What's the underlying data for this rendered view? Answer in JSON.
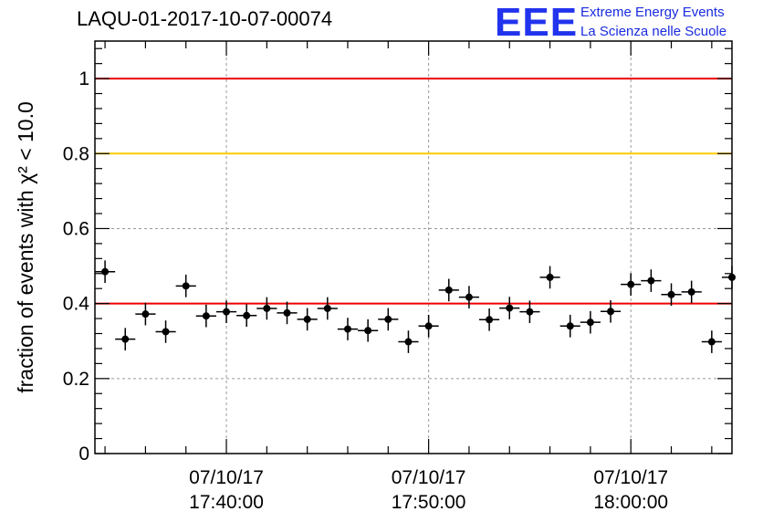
{
  "header": {
    "title": "LAQU-01-2017-10-07-00074"
  },
  "logo": {
    "mark": "EEE",
    "line1": "Extreme Energy Events",
    "line2": "La Scienza nelle Scuole",
    "color": "#2233ee"
  },
  "chart_data": {
    "type": "scatter",
    "ylabel": "fraction of events with χ² < 10.0",
    "ylim": [
      0,
      1.1
    ],
    "yticks": [
      0,
      0.2,
      0.4,
      0.6,
      0.8,
      1
    ],
    "ytick_labels": [
      "0",
      "0.2",
      "0.4",
      "0.6",
      "0.8",
      "1"
    ],
    "xlim": [
      "2017-10-07 17:33:30",
      "2017-10-07 18:05:00"
    ],
    "xticks": [
      "2017-10-07 17:40:00",
      "2017-10-07 17:50:00",
      "2017-10-07 18:00:00"
    ],
    "xtick_labels": [
      [
        "07/10/17",
        "17:40:00"
      ],
      [
        "07/10/17",
        "17:50:00"
      ],
      [
        "07/10/17",
        "18:00:00"
      ]
    ],
    "grid": true,
    "reference_lines": [
      {
        "y": 1.0,
        "color": "#ee0000"
      },
      {
        "y": 0.8,
        "color": "#ffcc00"
      },
      {
        "y": 0.4,
        "color": "#ee0000"
      }
    ],
    "series": [
      {
        "marker_color": "#000000",
        "x": [
          "2017-10-07 17:34:00",
          "2017-10-07 17:35:00",
          "2017-10-07 17:36:00",
          "2017-10-07 17:37:00",
          "2017-10-07 17:38:00",
          "2017-10-07 17:39:00",
          "2017-10-07 17:40:00",
          "2017-10-07 17:41:00",
          "2017-10-07 17:42:00",
          "2017-10-07 17:43:00",
          "2017-10-07 17:44:00",
          "2017-10-07 17:45:00",
          "2017-10-07 17:46:00",
          "2017-10-07 17:47:00",
          "2017-10-07 17:48:00",
          "2017-10-07 17:49:00",
          "2017-10-07 17:50:00",
          "2017-10-07 17:51:00",
          "2017-10-07 17:52:00",
          "2017-10-07 17:53:00",
          "2017-10-07 17:54:00",
          "2017-10-07 17:55:00",
          "2017-10-07 17:56:00",
          "2017-10-07 17:57:00",
          "2017-10-07 17:58:00",
          "2017-10-07 17:59:00",
          "2017-10-07 18:00:00",
          "2017-10-07 18:01:00",
          "2017-10-07 18:02:00",
          "2017-10-07 18:03:00",
          "2017-10-07 18:04:00",
          "2017-10-07 18:05:00"
        ],
        "y": [
          0.485,
          0.305,
          0.372,
          0.325,
          0.447,
          0.367,
          0.378,
          0.368,
          0.387,
          0.375,
          0.358,
          0.387,
          0.332,
          0.328,
          0.358,
          0.298,
          0.34,
          0.436,
          0.417,
          0.357,
          0.388,
          0.378,
          0.47,
          0.34,
          0.35,
          0.379,
          0.451,
          0.461,
          0.424,
          0.431,
          0.298,
          0.47
        ],
        "yerr": [
          0.03,
          0.03,
          0.03,
          0.03,
          0.03,
          0.03,
          0.03,
          0.03,
          0.03,
          0.03,
          0.03,
          0.03,
          0.03,
          0.03,
          0.03,
          0.03,
          0.03,
          0.03,
          0.03,
          0.03,
          0.03,
          0.03,
          0.03,
          0.03,
          0.03,
          0.03,
          0.03,
          0.03,
          0.03,
          0.03,
          0.03,
          0.03
        ],
        "xerr_seconds": 30
      }
    ]
  }
}
